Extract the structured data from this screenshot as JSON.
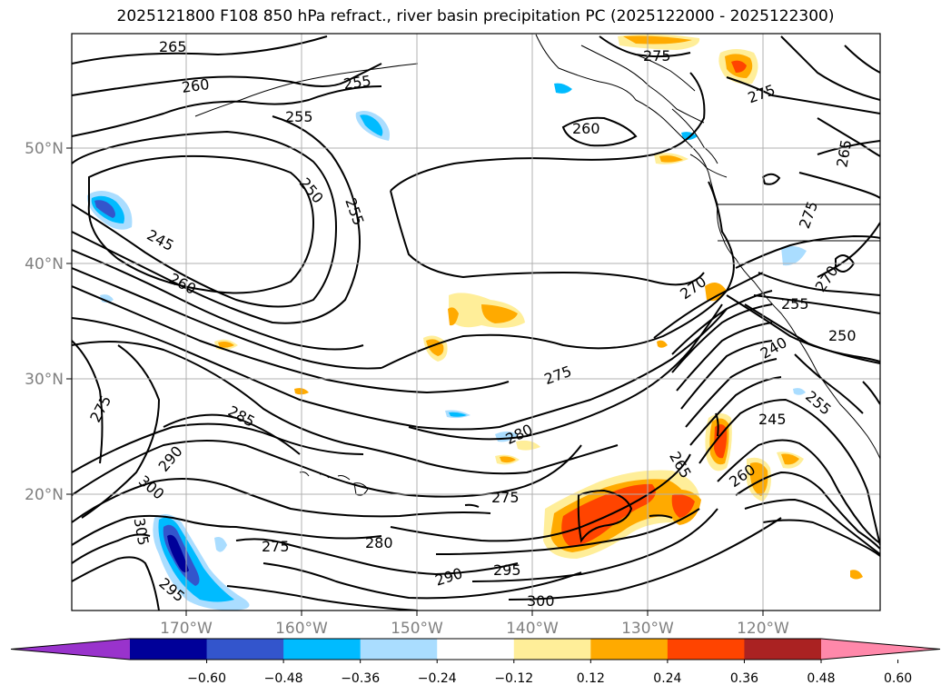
{
  "title": "2025121800 F108 850 hPa refract., river basin precipitation PC (2025122000 - 2025122300)",
  "lat_labels": [
    "50°N",
    "40°N",
    "30°N",
    "20°N"
  ],
  "lon_labels": [
    "170°W",
    "160°W",
    "150°W",
    "140°W",
    "130°W",
    "120°W"
  ],
  "contour_labels": [
    "265",
    "260",
    "255",
    "255",
    "250",
    "255",
    "245",
    "260",
    "275",
    "285",
    "290",
    "300",
    "305",
    "295",
    "275",
    "280",
    "290",
    "295",
    "300",
    "275",
    "280",
    "275",
    "270",
    "240",
    "255",
    "250",
    "245",
    "255",
    "260",
    "265",
    "270",
    "275",
    "265",
    "260",
    "275",
    "275"
  ],
  "colorbar": {
    "colors": [
      "#9933cc",
      "#000099",
      "#3355cc",
      "#00bbff",
      "#aaddff",
      "#ffffff",
      "#ffee99",
      "#ffaa00",
      "#ff4400",
      "#aa2222",
      "#ff88aa"
    ],
    "labels": [
      "−0.60",
      "−0.48",
      "−0.36",
      "−0.24",
      "−0.12",
      "0.12",
      "0.24",
      "0.36",
      "0.48",
      "0.60"
    ]
  }
}
